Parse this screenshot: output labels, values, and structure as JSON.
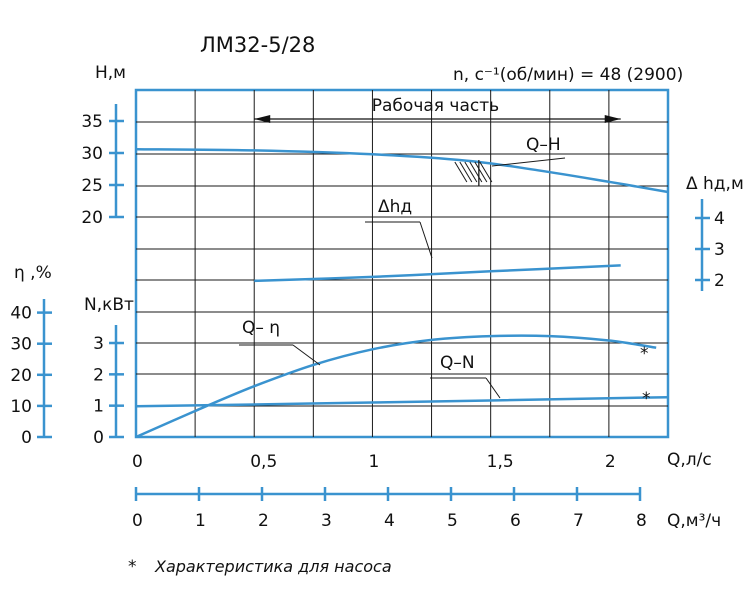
{
  "chart_data": {
    "type": "line",
    "title": "ЛМ32-5/28",
    "speed_note": "n, c⁻¹(об/мин) = 48 (2900)",
    "working_range_label": "Рабочая часть",
    "working_range": [
      0.5,
      2.05
    ],
    "footnote_mark": "*",
    "footnote": "Характеристика для насоса",
    "colors": {
      "curve": "#3a93cf",
      "axis": "#3a93cf",
      "grid": "#1a1a1a",
      "text": "#111111"
    },
    "x_axis": {
      "label": "Q,л/с",
      "ticks": [
        "0",
        "0,5",
        "1",
        "1,5",
        "2"
      ],
      "tick_values": [
        0,
        0.5,
        1,
        1.5,
        2
      ],
      "range": [
        0,
        2.25
      ]
    },
    "x2_axis": {
      "label": "Q,м³/ч",
      "ticks": [
        "0",
        "1",
        "2",
        "3",
        "4",
        "5",
        "6",
        "7",
        "8"
      ],
      "tick_values": [
        0,
        1,
        2,
        3,
        4,
        5,
        6,
        7,
        8
      ]
    },
    "h_axis": {
      "label": "H,м",
      "ticks": [
        "20",
        "25",
        "30",
        "35"
      ],
      "tick_values": [
        20,
        25,
        30,
        35
      ]
    },
    "dh_axis": {
      "label": "Δ hд,м",
      "ticks": [
        "4",
        "3",
        "2"
      ],
      "tick_values": [
        4,
        3,
        2
      ]
    },
    "n_axis": {
      "label": "N,кВт",
      "ticks": [
        "0",
        "1",
        "2",
        "3"
      ],
      "tick_values": [
        0,
        1,
        2,
        3
      ]
    },
    "eta_axis": {
      "label": "η ,%",
      "ticks": [
        "40",
        "30",
        "20",
        "10",
        "0"
      ],
      "tick_values": [
        40,
        30,
        20,
        10,
        0
      ]
    },
    "series": [
      {
        "name": "Q–H",
        "axis": "h",
        "x": [
          0,
          0.5,
          1.0,
          1.4,
          1.7,
          2.0,
          2.25
        ],
        "y": [
          30.6,
          30.4,
          29.8,
          28.8,
          27.3,
          25.5,
          23.9
        ]
      },
      {
        "name": "Δhд",
        "axis": "dh",
        "x": [
          0.5,
          1.0,
          1.5,
          2.05
        ],
        "y": [
          1.97,
          2.1,
          2.28,
          2.47
        ]
      },
      {
        "name": "Q– η",
        "axis": "n",
        "x": [
          0,
          0.25,
          0.5,
          0.75,
          1.0,
          1.25,
          1.5,
          1.75,
          2.0,
          2.2
        ],
        "y": [
          0,
          0.83,
          1.62,
          2.3,
          2.8,
          3.1,
          3.22,
          3.22,
          3.08,
          2.85
        ]
      },
      {
        "name": "Q–N",
        "axis": "n",
        "x": [
          0,
          1.0,
          2.25
        ],
        "y": [
          0.98,
          1.1,
          1.27
        ]
      }
    ]
  }
}
